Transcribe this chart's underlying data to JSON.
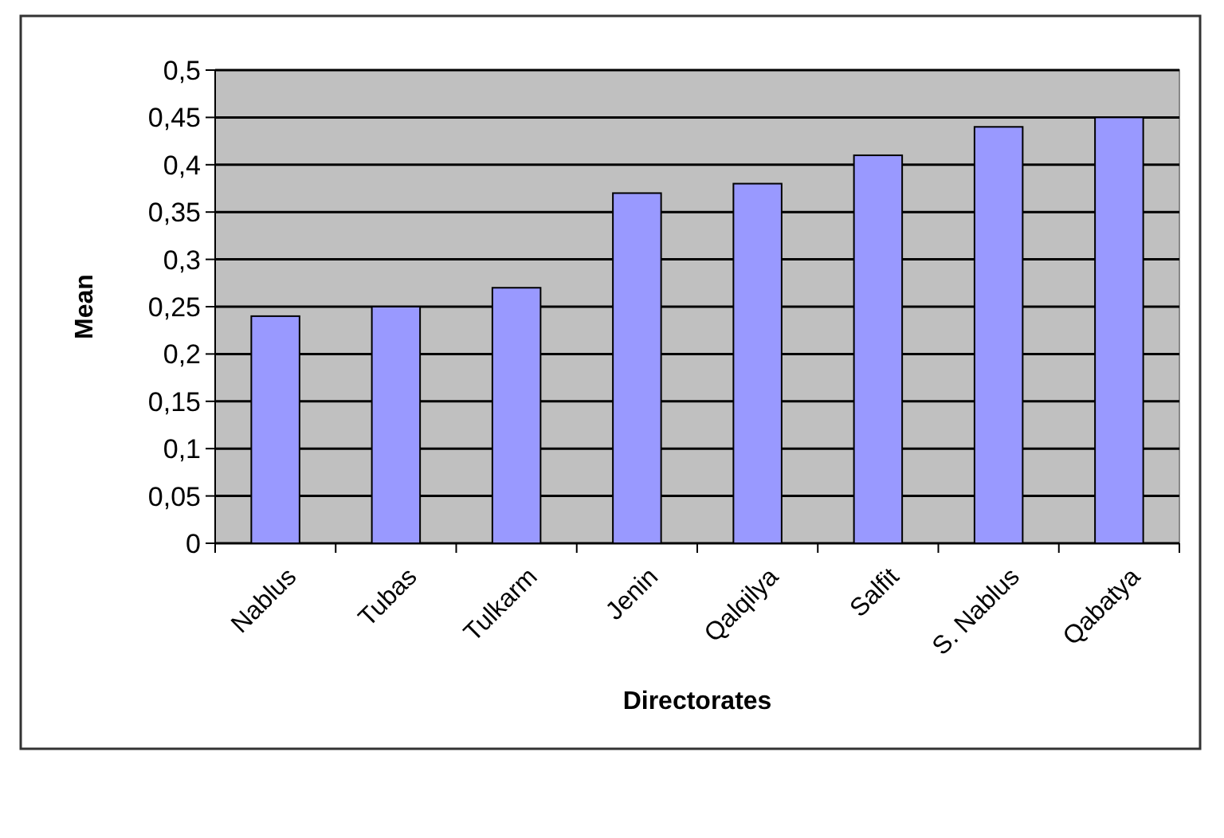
{
  "chart_data": {
    "type": "bar",
    "xlabel": "Directorates",
    "ylabel": "Mean",
    "categories": [
      "Nablus",
      "Tubas",
      "Tulkarm",
      "Jenin",
      "Qalqilya",
      "Salfit",
      "S. Nablus",
      "Qabatya"
    ],
    "values": [
      0.24,
      0.25,
      0.27,
      0.37,
      0.38,
      0.41,
      0.44,
      0.45
    ],
    "color": "#9999ff",
    "ylim": [
      0,
      0.5
    ],
    "yticks": [
      0,
      {
        "value": 0.05,
        "label": "0,05"
      },
      {
        "value": 0.1,
        "label": "0,1"
      },
      {
        "value": 0.15,
        "label": "0,15"
      },
      {
        "value": 0.2,
        "label": "0,2"
      },
      {
        "value": 0.25,
        "label": "0,25"
      },
      {
        "value": 0.3,
        "label": "0,3"
      },
      {
        "value": 0.35,
        "label": "0,35"
      },
      {
        "value": 0.4,
        "label": "0,4"
      },
      {
        "value": 0.45,
        "label": "0,45"
      },
      {
        "value": 0.5,
        "label": "0,5"
      }
    ],
    "grid": "y"
  }
}
